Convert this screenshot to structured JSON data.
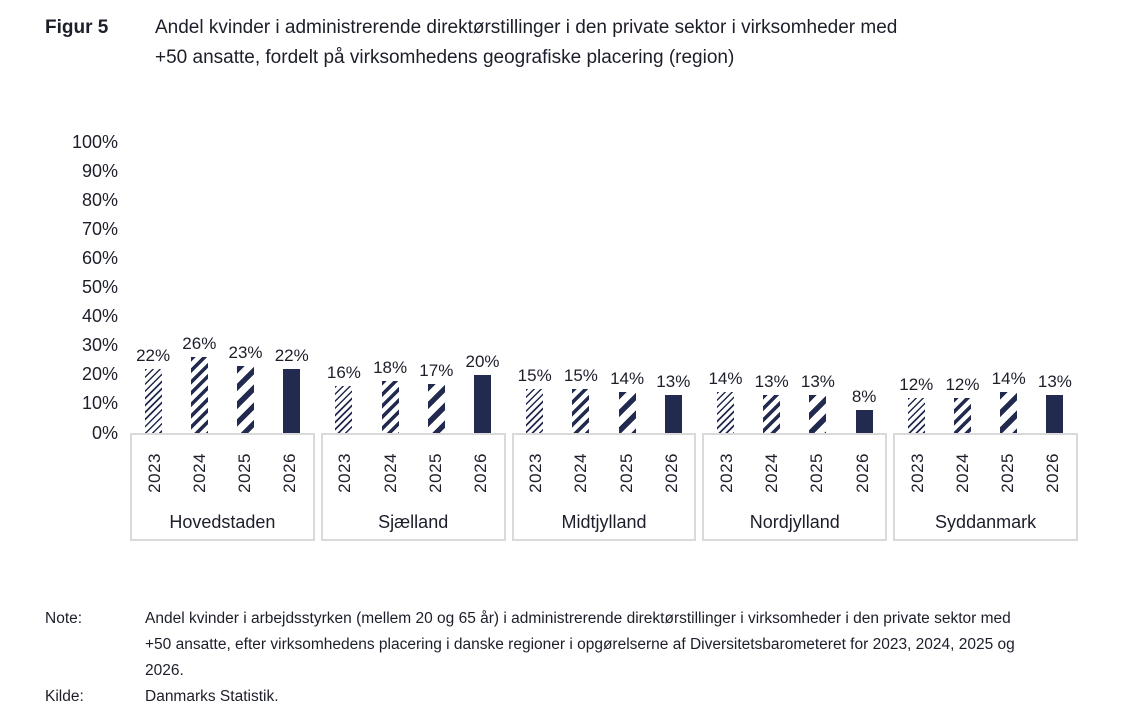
{
  "figure": {
    "label": "Figur 5",
    "title": "Andel kvinder i administrerende direktørstillinger i den private sektor i virksomheder med +50 ansatte, fordelt på virksomhedens geografiske placering (region)"
  },
  "chart_data": {
    "type": "bar",
    "title": "Andel kvinder i administrerende direktørstillinger i den private sektor i virksomheder med +50 ansatte, fordelt på virksomhedens geografiske placering (region)",
    "categories": [
      "Hovedstaden",
      "Sjælland",
      "Midtjylland",
      "Nordjylland",
      "Syddanmark"
    ],
    "series": [
      {
        "name": "2023",
        "values": [
          22,
          16,
          15,
          14,
          12
        ]
      },
      {
        "name": "2024",
        "values": [
          26,
          18,
          15,
          13,
          12
        ]
      },
      {
        "name": "2025",
        "values": [
          23,
          17,
          14,
          13,
          14
        ]
      },
      {
        "name": "2026",
        "values": [
          22,
          20,
          13,
          8,
          13
        ]
      }
    ],
    "unit": "%",
    "data_labels_shown": true,
    "ylim": [
      0,
      100
    ],
    "ytick_step": 10,
    "ytick_labels": [
      "0%",
      "10%",
      "20%",
      "30%",
      "40%",
      "50%",
      "60%",
      "70%",
      "80%",
      "90%",
      "100%"
    ],
    "grid": false,
    "legend_position": "none",
    "bar_patterns": {
      "2023": "thin-diagonal-hatch",
      "2024": "medium-diagonal-hatch",
      "2025": "wide-diagonal-hatch",
      "2026": "solid"
    },
    "colors": {
      "bar_color": "#222B4F",
      "category_box_border": "#D9D9D9",
      "text": "#1C1E2A"
    }
  },
  "notes": {
    "note_label": "Note:",
    "note_text": "Andel kvinder i arbejdsstyrken (mellem 20 og 65 år) i administrerende direktørstillinger i virksomheder i den private sektor med +50 ansatte, efter virksomhedens placering i danske regioner i opgørelserne af Diversitetsbarometeret for 2023, 2024, 2025 og 2026.",
    "source_label": "Kilde:",
    "source_text": "Danmarks Statistik."
  }
}
